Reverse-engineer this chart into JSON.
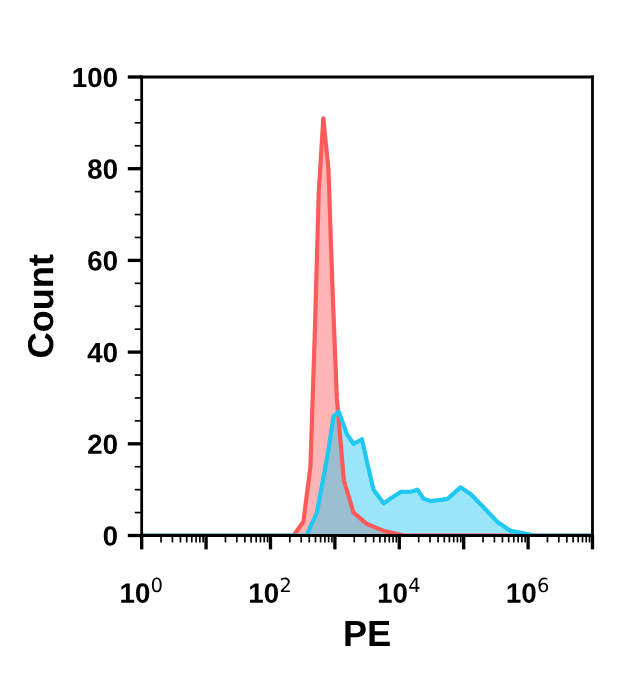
{
  "chart_data": {
    "type": "area",
    "xlabel": "PE",
    "ylabel": "Count",
    "log": "x",
    "xlim": [
      1,
      10000000
    ],
    "ylim": [
      0,
      100
    ],
    "xticks": [
      {
        "value": 1,
        "label": "10$^{0}$"
      },
      {
        "value": 10,
        "label": null
      },
      {
        "value": 100,
        "label": "10$^{2}$"
      },
      {
        "value": 1000,
        "label": null
      },
      {
        "value": 10000,
        "label": "10$^{4}$"
      },
      {
        "value": 100000,
        "label": null
      },
      {
        "value": 1000000,
        "label": "10$^{6}$"
      },
      {
        "value": 10000000,
        "label": null
      }
    ],
    "yticks": [
      0,
      20,
      40,
      60,
      80,
      100
    ],
    "grid": false,
    "series": [
      {
        "color": "#ff5a5a",
        "x": [
          1,
          229,
          324,
          417,
          490,
          562,
          661,
          794,
          912,
          1072,
          1380,
          1950,
          3160,
          5750,
          9330,
          12000,
          10000000
        ],
        "values": [
          0,
          0,
          3,
          15,
          45,
          75,
          91,
          80,
          55,
          30,
          12,
          5,
          2.5,
          1,
          0.3,
          0,
          0
        ]
      },
      {
        "color": "#1ec8f0",
        "x": [
          1,
          363,
          525,
          759,
          955,
          1150,
          1550,
          1950,
          2630,
          3160,
          3980,
          5750,
          7240,
          10500,
          14800,
          19100,
          24000,
          30900,
          56200,
          89100,
          129000,
          209000,
          331000,
          537000,
          977000,
          1260000,
          10000000
        ],
        "values": [
          0,
          0,
          5,
          17,
          26,
          27,
          22,
          20,
          21,
          16,
          10,
          7,
          8,
          9.5,
          9.5,
          10,
          8,
          7.5,
          8,
          10.5,
          9,
          6,
          3,
          1,
          0.3,
          0,
          0
        ]
      }
    ]
  }
}
